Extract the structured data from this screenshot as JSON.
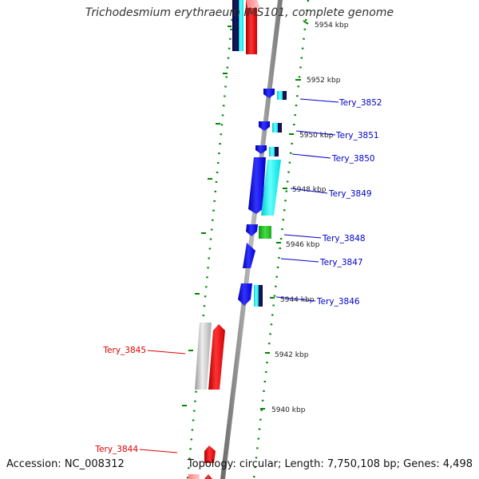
{
  "title": "Trichodesmium erythraeum IMS101, complete genome",
  "footer": {
    "accession": "Accession: NC_008312",
    "summary": "Topology: circular; Length: 7,750,108 bp; Genes: 4,498"
  },
  "colors": {
    "strand_forward_gene": "#0000ff",
    "strand_forward_cds": "#00ffff",
    "strand_reverse_gene": "#ff0000",
    "strand_reverse_cds": "#c8c8c8",
    "other_feature": "#22cc22",
    "tick": "#008800",
    "backbone": "#888888",
    "label_forward": "#0000cc",
    "label_reverse": "#dd0000"
  },
  "scale": {
    "ticks": [
      {
        "label": "5954 kbp"
      },
      {
        "label": "5952 kbp"
      },
      {
        "label": "5950 kbp"
      },
      {
        "label": "5948 kbp"
      },
      {
        "label": "5946 kbp"
      },
      {
        "label": "5944 kbp"
      },
      {
        "label": "5942 kbp"
      },
      {
        "label": "5940 kbp"
      }
    ]
  },
  "genes": [
    {
      "name": "Tery_3852",
      "strand": "forward"
    },
    {
      "name": "Tery_3851",
      "strand": "forward"
    },
    {
      "name": "Tery_3850",
      "strand": "forward"
    },
    {
      "name": "Tery_3849",
      "strand": "forward"
    },
    {
      "name": "Tery_3848",
      "strand": "forward"
    },
    {
      "name": "Tery_3847",
      "strand": "forward"
    },
    {
      "name": "Tery_3846",
      "strand": "forward"
    },
    {
      "name": "Tery_3845",
      "strand": "reverse"
    },
    {
      "name": "Tery_3844",
      "strand": "reverse"
    }
  ]
}
